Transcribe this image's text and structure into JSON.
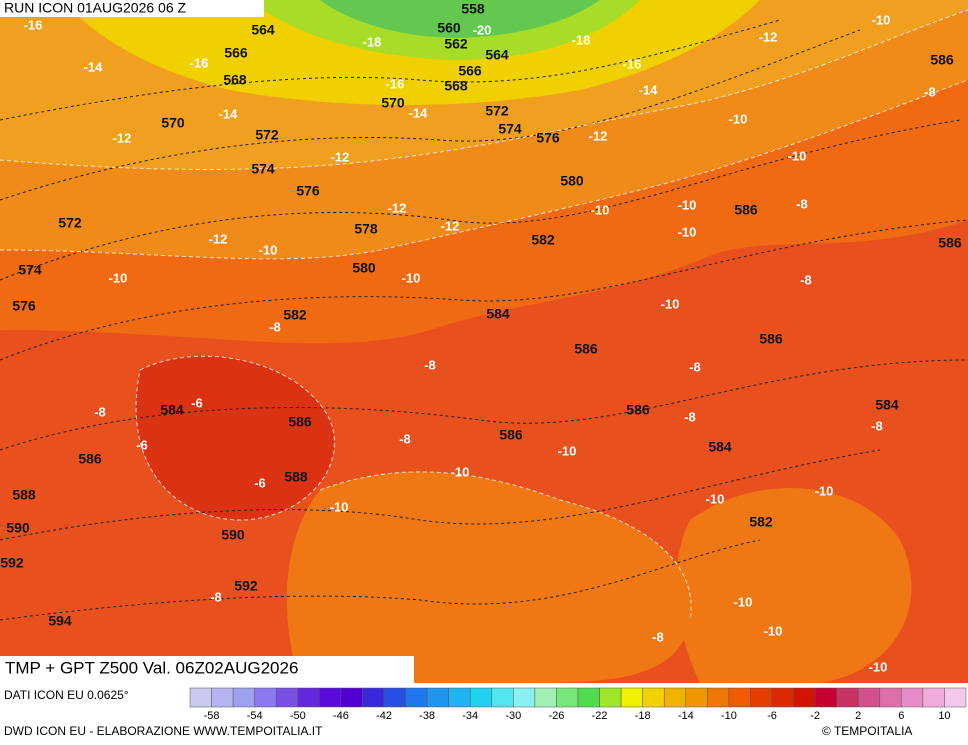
{
  "header": {
    "run": "RUN ICON 01AUG2026 06 Z"
  },
  "map": {
    "title": "TMP + GPT Z500 Val. 06Z02AUG2026",
    "gpt_labels": [
      558,
      560,
      562,
      564,
      564,
      566,
      566,
      568,
      568,
      570,
      570,
      572,
      572,
      574,
      574,
      576,
      576,
      578,
      580,
      580,
      582,
      582,
      572,
      574,
      576,
      584,
      586,
      586,
      586,
      586,
      586,
      584,
      586,
      586,
      588,
      588,
      590,
      590,
      592,
      592,
      594,
      586,
      586,
      584,
      584,
      582
    ],
    "temp_labels": [
      -16,
      -14,
      -12,
      -16,
      -14,
      -18,
      -20,
      -18,
      -16,
      -14,
      -16,
      -14,
      -12,
      -10,
      -12,
      -12,
      -12,
      -12,
      -10,
      -10,
      -8,
      -8,
      -10,
      -10,
      -10,
      -12,
      -10,
      -10,
      -10,
      -8,
      -10,
      -8,
      -8,
      -8,
      -6,
      -6,
      -6,
      -8,
      -8,
      -8,
      -8,
      -10,
      -10,
      -10,
      -10,
      -10,
      -8,
      -10,
      -10,
      -8,
      -10
    ]
  },
  "footer": {
    "source": "DATI ICON EU 0.0625°",
    "credits": "DWD ICON EU - ELABORAZIONE WWW.TEMPOITALIA.IT",
    "copyright": "© TEMPOITALIA",
    "scale_labels": [
      -58,
      -54,
      -50,
      -46,
      -42,
      -38,
      -34,
      -30,
      -26,
      -22,
      -18,
      -14,
      -10,
      -6,
      -2,
      2,
      6,
      10
    ]
  }
}
